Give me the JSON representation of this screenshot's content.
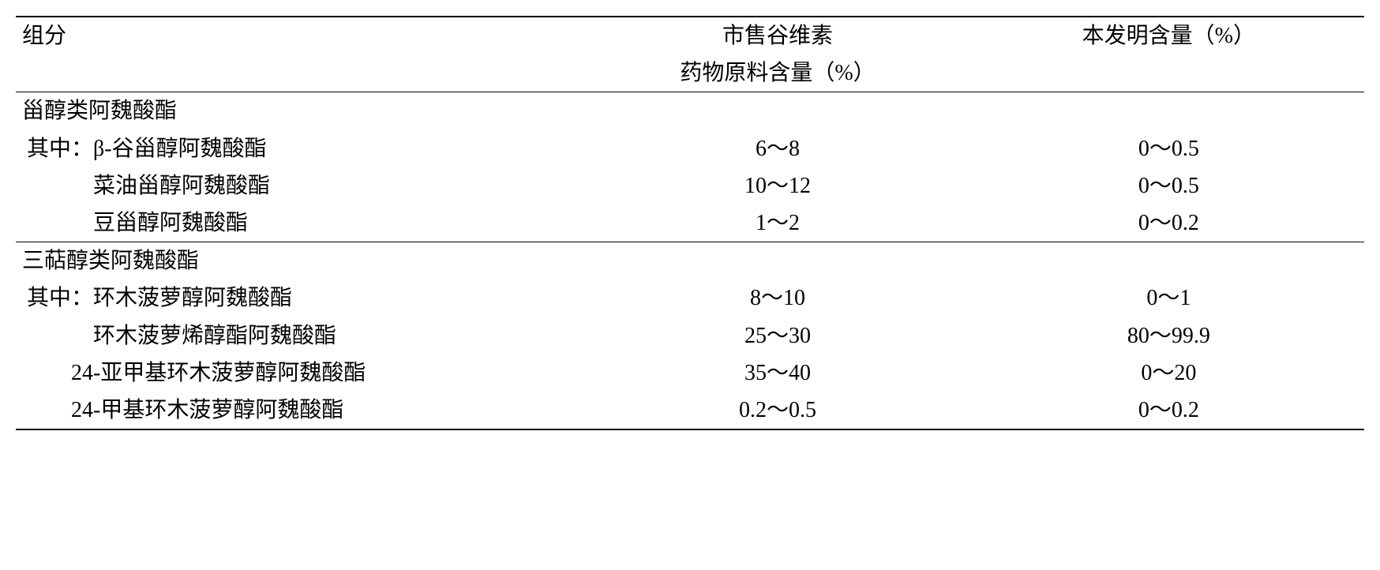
{
  "table": {
    "headers": {
      "col1": "组分",
      "col2_line1": "市售谷维素",
      "col2_line2": "药物原料含量（%）",
      "col3": "本发明含量（%）"
    },
    "section1": {
      "title": "甾醇类阿魏酸酯",
      "rows": [
        {
          "label": "其中：β-谷甾醇阿魏酸酯",
          "val2": "6～8",
          "val3": "0～0.5"
        },
        {
          "label": "菜油甾醇阿魏酸酯",
          "val2": "10～12",
          "val3": "0～0.5"
        },
        {
          "label": "豆甾醇阿魏酸酯",
          "val2": "1～2",
          "val3": "0～0.2"
        }
      ]
    },
    "section2": {
      "title": "三萜醇类阿魏酸酯",
      "rows": [
        {
          "label": "其中：环木菠萝醇阿魏酸酯",
          "val2": "8～10",
          "val3": "0～1"
        },
        {
          "label": "环木菠萝烯醇酯阿魏酸酯",
          "val2": "25～30",
          "val3": "80～99.9"
        },
        {
          "label": "24-亚甲基环木菠萝醇阿魏酸酯",
          "val2": "35～40",
          "val3": "0～20"
        },
        {
          "label": "24-甲基环木菠萝醇阿魏酸酯",
          "val2": "0.2～0.5",
          "val3": "0～0.2"
        }
      ]
    },
    "styling": {
      "font_family": "SimSun",
      "font_size_pt": 28,
      "text_color": "#000000",
      "background_color": "#ffffff",
      "border_color": "#000000",
      "top_border_width": 2,
      "mid_border_width": 1.5,
      "col_widths_pct": [
        42,
        29,
        29
      ],
      "col_alignments": [
        "left",
        "center",
        "center"
      ]
    }
  }
}
